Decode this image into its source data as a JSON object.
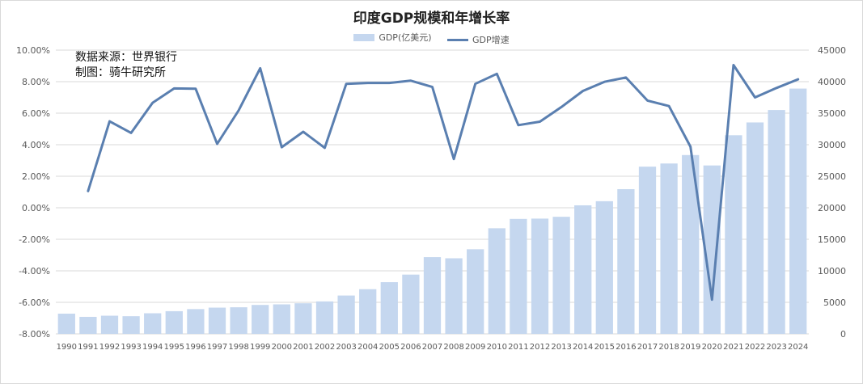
{
  "title": "印度GDP规模和年增长率",
  "source_lines": [
    "数据来源：世界银行",
    "制图：骑牛研究所"
  ],
  "colors": {
    "bar": "#c5d7ef",
    "line": "#5a7fb0",
    "grid": "#d9d9d9",
    "axis_text": "#595959"
  },
  "chart_data": {
    "type": "bar",
    "title": "印度GDP规模和年增长率",
    "categories": [
      "1990",
      "1991",
      "1992",
      "1993",
      "1994",
      "1995",
      "1996",
      "1997",
      "1998",
      "1999",
      "2000",
      "2001",
      "2002",
      "2003",
      "2004",
      "2005",
      "2006",
      "2007",
      "2008",
      "2009",
      "2010",
      "2011",
      "2012",
      "2013",
      "2014",
      "2015",
      "2016",
      "2017",
      "2018",
      "2019",
      "2020",
      "2021",
      "2022",
      "2023",
      "2024"
    ],
    "series": [
      {
        "name": "GDP(亿美元)",
        "type": "bar",
        "axis": "right",
        "values": [
          3210,
          2700,
          2880,
          2800,
          3270,
          3600,
          3930,
          4160,
          4220,
          4590,
          4680,
          4850,
          5150,
          6080,
          7090,
          8200,
          9400,
          12170,
          11990,
          13420,
          16750,
          18230,
          18280,
          18570,
          20390,
          21040,
          22950,
          26520,
          27020,
          28360,
          26710,
          31500,
          33530,
          35500,
          38900
        ]
      },
      {
        "name": "GDP增速",
        "type": "line",
        "axis": "left",
        "values": [
          null,
          1.06,
          5.48,
          4.75,
          6.66,
          7.57,
          7.55,
          4.05,
          6.18,
          8.85,
          3.84,
          4.82,
          3.8,
          7.86,
          7.92,
          7.92,
          8.06,
          7.66,
          3.09,
          7.86,
          8.5,
          5.24,
          5.46,
          6.39,
          7.41,
          7.99,
          8.26,
          6.8,
          6.45,
          3.87,
          -5.83,
          9.05,
          7.0,
          7.6,
          8.15
        ]
      }
    ],
    "y_left": {
      "min": -8,
      "max": 10,
      "step": 2,
      "ticks": [
        "-8.00%",
        "-6.00%",
        "-4.00%",
        "-2.00%",
        "0.00%",
        "2.00%",
        "4.00%",
        "6.00%",
        "8.00%",
        "10.00%"
      ]
    },
    "y_right": {
      "min": 0,
      "max": 45000,
      "step": 5000,
      "ticks": [
        "0",
        "5000",
        "10000",
        "15000",
        "20000",
        "25000",
        "30000",
        "35000",
        "40000",
        "45000"
      ]
    },
    "legend": [
      "GDP(亿美元)",
      "GDP增速"
    ],
    "legend_position": "top",
    "grid": true
  }
}
